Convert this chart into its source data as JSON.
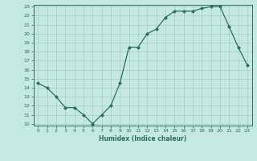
{
  "x": [
    0,
    1,
    2,
    3,
    4,
    5,
    6,
    7,
    8,
    9,
    10,
    11,
    12,
    13,
    14,
    15,
    16,
    17,
    18,
    19,
    20,
    21,
    22,
    23
  ],
  "y": [
    14.5,
    14.0,
    13.0,
    11.8,
    11.8,
    11.0,
    10.0,
    11.0,
    12.0,
    14.5,
    18.5,
    18.5,
    20.0,
    20.5,
    21.8,
    22.5,
    22.5,
    22.5,
    22.8,
    23.0,
    23.0,
    20.8,
    18.5,
    16.5
  ],
  "xlabel": "Humidex (Indice chaleur)",
  "ylim": [
    10,
    23
  ],
  "xlim": [
    -0.5,
    23.5
  ],
  "yticks": [
    10,
    11,
    12,
    13,
    14,
    15,
    16,
    17,
    18,
    19,
    20,
    21,
    22,
    23
  ],
  "xticks": [
    0,
    1,
    2,
    3,
    4,
    5,
    6,
    7,
    8,
    9,
    10,
    11,
    12,
    13,
    14,
    15,
    16,
    17,
    18,
    19,
    20,
    21,
    22,
    23
  ],
  "line_color": "#2d6e5e",
  "marker_color": "#2d6e5e",
  "bg_color": "#c5e8e0",
  "grid_color": "#9dc8be",
  "xlabel_color": "#2d6e5e",
  "tick_color": "#2d6e5e",
  "axis_color": "#2d6e5e",
  "figure_bg": "#c5e8e0"
}
